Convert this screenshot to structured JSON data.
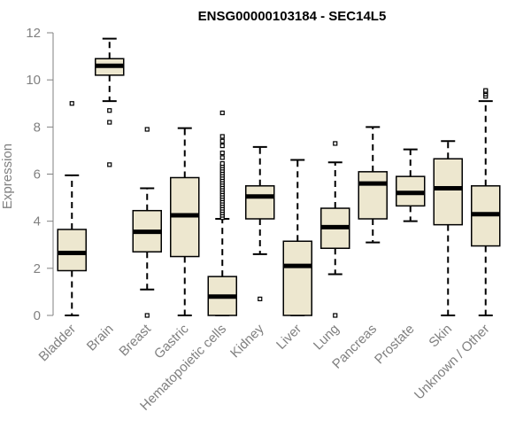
{
  "chart_data": {
    "type": "boxplot",
    "title": "ENSG00000103184 - SEC14L5",
    "xlabel": "",
    "ylabel": "Expression",
    "ylim": [
      0,
      12
    ],
    "yticks": [
      0,
      2,
      4,
      6,
      8,
      10,
      12
    ],
    "grid": false,
    "box_fill": "#ede7cf",
    "box_stroke": "#000000",
    "categories": [
      "Bladder",
      "Brain",
      "Breast",
      "Gastric",
      "Hematopoietic cells",
      "Kidney",
      "Liver",
      "Lung",
      "Pancreas",
      "Prostate",
      "Skin",
      "Unknown / Other"
    ],
    "boxes": [
      {
        "name": "Bladder",
        "q1": 1.9,
        "median": 2.65,
        "q3": 3.65,
        "whisker_low": 0.0,
        "whisker_high": 5.95,
        "outliers": [
          9.0
        ]
      },
      {
        "name": "Brain",
        "q1": 10.2,
        "median": 10.6,
        "q3": 10.9,
        "whisker_low": 9.1,
        "whisker_high": 11.75,
        "outliers": [
          8.7,
          8.2,
          6.4
        ]
      },
      {
        "name": "Breast",
        "q1": 2.7,
        "median": 3.55,
        "q3": 4.45,
        "whisker_low": 1.1,
        "whisker_high": 5.4,
        "outliers": [
          7.9,
          0.0
        ]
      },
      {
        "name": "Gastric",
        "q1": 2.5,
        "median": 4.25,
        "q3": 5.85,
        "whisker_low": 0.0,
        "whisker_high": 7.95,
        "outliers": []
      },
      {
        "name": "Hematopoietic cells",
        "q1": 0.0,
        "median": 0.8,
        "q3": 1.65,
        "whisker_low": 0.0,
        "whisker_high": 4.1,
        "outliers": [
          4.15,
          4.25,
          4.35,
          4.45,
          4.55,
          4.65,
          4.75,
          4.85,
          4.95,
          5.05,
          5.15,
          5.25,
          5.35,
          5.45,
          5.55,
          5.65,
          5.75,
          5.85,
          5.95,
          6.05,
          6.15,
          6.25,
          6.35,
          6.45,
          6.7,
          6.9,
          7.2,
          7.4,
          7.6,
          8.6
        ]
      },
      {
        "name": "Kidney",
        "q1": 4.1,
        "median": 5.05,
        "q3": 5.5,
        "whisker_low": 2.6,
        "whisker_high": 7.15,
        "outliers": [
          0.7
        ]
      },
      {
        "name": "Liver",
        "q1": 0.0,
        "median": 2.1,
        "q3": 3.15,
        "whisker_low": 0.0,
        "whisker_high": 6.6,
        "outliers": []
      },
      {
        "name": "Lung",
        "q1": 2.85,
        "median": 3.75,
        "q3": 4.55,
        "whisker_low": 1.75,
        "whisker_high": 6.5,
        "outliers": [
          7.3,
          0.0
        ]
      },
      {
        "name": "Pancreas",
        "q1": 4.1,
        "median": 5.6,
        "q3": 6.1,
        "whisker_low": 3.1,
        "whisker_high": 8.0,
        "outliers": []
      },
      {
        "name": "Prostate",
        "q1": 4.65,
        "median": 5.2,
        "q3": 5.9,
        "whisker_low": 4.0,
        "whisker_high": 7.05,
        "outliers": []
      },
      {
        "name": "Skin",
        "q1": 3.85,
        "median": 5.4,
        "q3": 6.65,
        "whisker_low": 0.0,
        "whisker_high": 7.4,
        "outliers": []
      },
      {
        "name": "Unknown / Other",
        "q1": 2.95,
        "median": 4.3,
        "q3": 5.5,
        "whisker_low": 0.0,
        "whisker_high": 9.1,
        "outliers": [
          9.3,
          9.4,
          9.5,
          9.55
        ]
      }
    ]
  }
}
